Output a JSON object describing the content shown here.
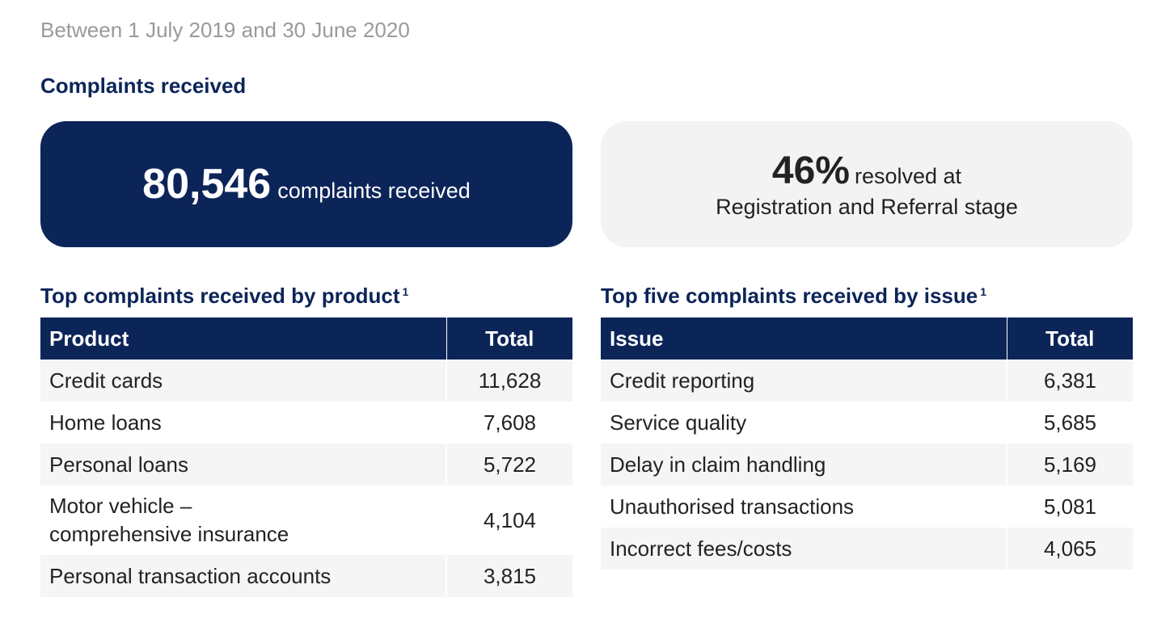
{
  "period": "Between 1 July 2019 and 30 June 2020",
  "section_title": "Complaints received",
  "stat_received": {
    "value": "80,546",
    "caption": "complaints received"
  },
  "stat_resolved": {
    "value": "46%",
    "caption_line1": "resolved at",
    "caption_line2": "Registration and Referral stage"
  },
  "product_table": {
    "title": "Top complaints received by product",
    "footnote": "1",
    "headers": [
      "Product",
      "Total"
    ],
    "rows": [
      {
        "label": "Credit cards",
        "total": "11,628"
      },
      {
        "label": "Home loans",
        "total": "7,608"
      },
      {
        "label": "Personal loans",
        "total": "5,722"
      },
      {
        "label_line1": "Motor vehicle –",
        "label_line2": "comprehensive insurance",
        "total": "4,104"
      },
      {
        "label": "Personal transaction accounts",
        "total": "3,815"
      }
    ]
  },
  "issue_table": {
    "title": "Top five complaints received by issue",
    "footnote": "1",
    "headers": [
      "Issue",
      "Total"
    ],
    "rows": [
      {
        "label": "Credit reporting",
        "total": "6,381"
      },
      {
        "label": "Service quality",
        "total": "5,685"
      },
      {
        "label": "Delay in claim handling",
        "total": "5,169"
      },
      {
        "label": "Unauthorised transactions",
        "total": "5,081"
      },
      {
        "label": "Incorrect fees/costs",
        "total": "4,065"
      }
    ]
  },
  "colors": {
    "navy": "#0c2559",
    "light_box": "#f3f3f3",
    "muted_text": "#9a9a9a"
  }
}
